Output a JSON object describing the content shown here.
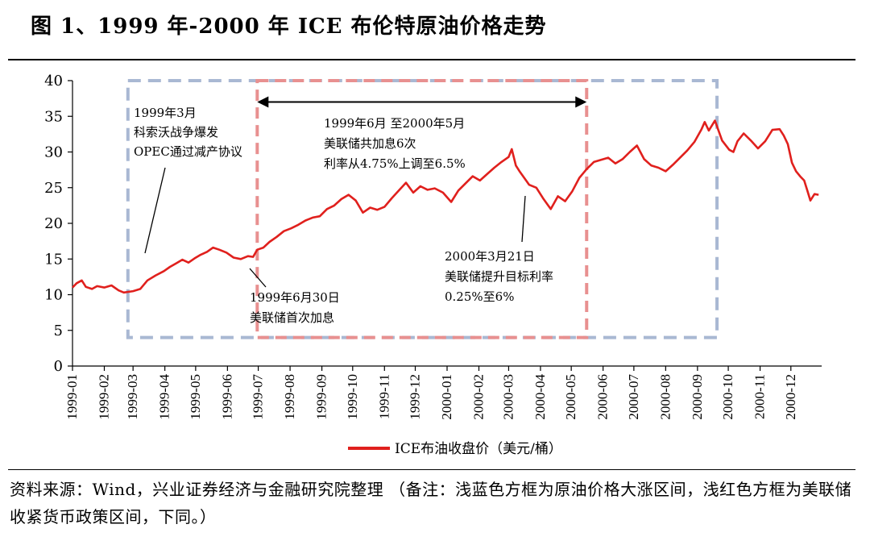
{
  "title": "图 1、1999 年-2000 年 ICE 布伦特原油价格走势",
  "source_note": "资料来源：Wind，兴业证券经济与金融研究院整理 （备注：浅蓝色方框为原油价格大涨区间，浅红色方框为美联储收紧货币政策区间，下同。）",
  "chart_data": {
    "type": "line",
    "title": "",
    "xlabel": "",
    "ylabel": "",
    "x_ticks": [
      "1999-01",
      "1999-02",
      "1999-03",
      "1999-04",
      "1999-05",
      "1999-06",
      "1999-07",
      "1999-08",
      "1999-09",
      "1999-10",
      "1999-11",
      "1999-12",
      "2000-01",
      "2000-02",
      "2000-03",
      "2000-04",
      "2000-05",
      "2000-06",
      "2000-07",
      "2000-08",
      "2000-09",
      "2000-10",
      "2000-11",
      "2000-12"
    ],
    "y_ticks": [
      0,
      5,
      10,
      15,
      20,
      25,
      30,
      35,
      40
    ],
    "ylim": [
      0,
      40
    ],
    "xlim": [
      "1999-01-01",
      "2000-12-31"
    ],
    "grid": false,
    "legend_position": "bottom-center",
    "series": [
      {
        "name": "ICE布油收盘价（美元/桶）",
        "color": "#e0201d",
        "points": [
          [
            "1999-01-01",
            11.0
          ],
          [
            "1999-01-05",
            11.6
          ],
          [
            "1999-01-10",
            12.0
          ],
          [
            "1999-01-14",
            11.1
          ],
          [
            "1999-01-20",
            10.8
          ],
          [
            "1999-01-25",
            11.2
          ],
          [
            "1999-02-01",
            11.0
          ],
          [
            "1999-02-08",
            11.3
          ],
          [
            "1999-02-15",
            10.6
          ],
          [
            "1999-02-20",
            10.3
          ],
          [
            "1999-03-01",
            10.5
          ],
          [
            "1999-03-08",
            10.8
          ],
          [
            "1999-03-15",
            12.0
          ],
          [
            "1999-03-23",
            12.7
          ],
          [
            "1999-03-31",
            13.3
          ],
          [
            "1999-04-06",
            13.9
          ],
          [
            "1999-04-12",
            14.4
          ],
          [
            "1999-04-18",
            14.9
          ],
          [
            "1999-04-24",
            14.5
          ],
          [
            "1999-04-30",
            15.1
          ],
          [
            "1999-05-06",
            15.6
          ],
          [
            "1999-05-12",
            16.0
          ],
          [
            "1999-05-18",
            16.6
          ],
          [
            "1999-05-24",
            16.3
          ],
          [
            "1999-05-31",
            15.9
          ],
          [
            "1999-06-07",
            15.2
          ],
          [
            "1999-06-14",
            15.0
          ],
          [
            "1999-06-21",
            15.4
          ],
          [
            "1999-06-26",
            15.3
          ],
          [
            "1999-06-30",
            16.3
          ],
          [
            "1999-07-06",
            16.6
          ],
          [
            "1999-07-12",
            17.4
          ],
          [
            "1999-07-19",
            18.1
          ],
          [
            "1999-07-26",
            18.9
          ],
          [
            "1999-08-02",
            19.3
          ],
          [
            "1999-08-09",
            19.8
          ],
          [
            "1999-08-16",
            20.4
          ],
          [
            "1999-08-23",
            20.8
          ],
          [
            "1999-08-30",
            21.0
          ],
          [
            "1999-09-06",
            22.0
          ],
          [
            "1999-09-13",
            22.5
          ],
          [
            "1999-09-20",
            23.4
          ],
          [
            "1999-09-27",
            24.0
          ],
          [
            "1999-10-04",
            23.2
          ],
          [
            "1999-10-11",
            21.5
          ],
          [
            "1999-10-18",
            22.2
          ],
          [
            "1999-10-25",
            21.9
          ],
          [
            "1999-11-01",
            22.3
          ],
          [
            "1999-11-08",
            23.5
          ],
          [
            "1999-11-15",
            24.6
          ],
          [
            "1999-11-22",
            25.7
          ],
          [
            "1999-11-29",
            24.3
          ],
          [
            "1999-12-06",
            25.2
          ],
          [
            "1999-12-13",
            24.7
          ],
          [
            "1999-12-20",
            24.9
          ],
          [
            "1999-12-28",
            24.3
          ],
          [
            "2000-01-05",
            23.0
          ],
          [
            "2000-01-12",
            24.6
          ],
          [
            "2000-01-19",
            25.6
          ],
          [
            "2000-01-26",
            26.6
          ],
          [
            "2000-02-02",
            26.0
          ],
          [
            "2000-02-09",
            26.9
          ],
          [
            "2000-02-16",
            27.8
          ],
          [
            "2000-02-23",
            28.6
          ],
          [
            "2000-03-01",
            29.3
          ],
          [
            "2000-03-04",
            30.4
          ],
          [
            "2000-03-08",
            28.1
          ],
          [
            "2000-03-12",
            27.2
          ],
          [
            "2000-03-18",
            26.0
          ],
          [
            "2000-03-21",
            25.4
          ],
          [
            "2000-03-28",
            25.0
          ],
          [
            "2000-04-04",
            23.4
          ],
          [
            "2000-04-11",
            22.0
          ],
          [
            "2000-04-18",
            23.8
          ],
          [
            "2000-04-25",
            23.1
          ],
          [
            "2000-05-02",
            24.5
          ],
          [
            "2000-05-09",
            26.4
          ],
          [
            "2000-05-16",
            27.6
          ],
          [
            "2000-05-23",
            28.6
          ],
          [
            "2000-05-30",
            28.9
          ],
          [
            "2000-06-06",
            29.2
          ],
          [
            "2000-06-13",
            28.4
          ],
          [
            "2000-06-20",
            29.0
          ],
          [
            "2000-06-27",
            30.0
          ],
          [
            "2000-07-04",
            30.9
          ],
          [
            "2000-07-11",
            29.0
          ],
          [
            "2000-07-18",
            28.1
          ],
          [
            "2000-07-25",
            27.8
          ],
          [
            "2000-08-01",
            27.3
          ],
          [
            "2000-08-08",
            28.2
          ],
          [
            "2000-08-15",
            29.2
          ],
          [
            "2000-08-22",
            30.2
          ],
          [
            "2000-08-29",
            31.4
          ],
          [
            "2000-09-05",
            33.2
          ],
          [
            "2000-09-08",
            34.2
          ],
          [
            "2000-09-12",
            33.0
          ],
          [
            "2000-09-18",
            34.4
          ],
          [
            "2000-09-25",
            31.6
          ],
          [
            "2000-10-02",
            30.3
          ],
          [
            "2000-10-06",
            30.0
          ],
          [
            "2000-10-10",
            31.5
          ],
          [
            "2000-10-16",
            32.6
          ],
          [
            "2000-10-23",
            31.6
          ],
          [
            "2000-10-30",
            30.5
          ],
          [
            "2000-11-06",
            31.5
          ],
          [
            "2000-11-13",
            33.1
          ],
          [
            "2000-11-20",
            33.2
          ],
          [
            "2000-11-24",
            32.3
          ],
          [
            "2000-11-28",
            31.1
          ],
          [
            "2000-12-02",
            28.5
          ],
          [
            "2000-12-06",
            27.3
          ],
          [
            "2000-12-10",
            26.6
          ],
          [
            "2000-12-14",
            26.0
          ],
          [
            "2000-12-17",
            24.6
          ],
          [
            "2000-12-20",
            23.2
          ],
          [
            "2000-12-24",
            24.1
          ],
          [
            "2000-12-28",
            24.0
          ]
        ]
      }
    ],
    "shaded_regions": [
      {
        "name": "原油价格大涨区间",
        "color": "#a9b8d3",
        "x": [
          "1999-02-24",
          "2000-09-20"
        ],
        "y": [
          4,
          40
        ]
      },
      {
        "name": "美联储收紧货币政策区间",
        "color": "#e89090",
        "x": [
          "1999-06-30",
          "2000-05-16"
        ],
        "y": [
          4,
          40
        ]
      }
    ],
    "range_arrow": {
      "x": [
        "1999-06-30",
        "2000-05-16"
      ],
      "y": 37
    },
    "annotations": [
      {
        "lines": [
          "1999年3月",
          "科索沃战争爆发",
          "OPEC通过减产协议"
        ],
        "x": "1999-03-15",
        "y": 16
      },
      {
        "lines": [
          "1999年6月 至2000年5月",
          "美联储共加息6次",
          "利率从4.75%上调至6.5%"
        ],
        "x": "1999-10-01",
        "y": 30
      },
      {
        "lines": [
          "1999年6月30日",
          "美联储首次加息"
        ],
        "x": "1999-06-30",
        "y": 16.3
      },
      {
        "lines": [
          "2000年3月21日",
          "美联储提升目标利率",
          "0.25%至6%"
        ],
        "x": "2000-03-21",
        "y": 25.4
      }
    ]
  }
}
